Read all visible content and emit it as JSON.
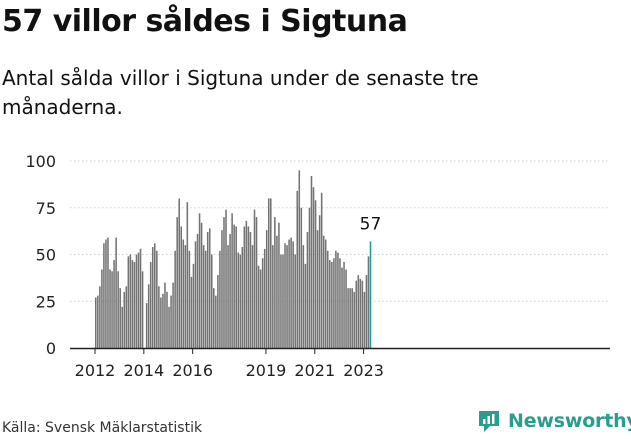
{
  "title": "57 villor såldes i Sigtuna",
  "subtitle": "Antal sålda villor i Sigtuna under de senaste tre månaderna.",
  "source": "Källa: Svensk Mäklarstatistik",
  "brand": "Newsworthy",
  "colors": {
    "bar": "#737373",
    "highlight": "#1a9e96",
    "brand": "#2a9d8f",
    "axis": "#222222"
  },
  "chart_data": {
    "type": "bar",
    "title": "57 villor såldes i Sigtuna",
    "xlabel": "",
    "ylabel": "",
    "ylim": [
      0,
      100
    ],
    "y_ticks": [
      0,
      25,
      50,
      75,
      100
    ],
    "x_ticks": [
      "2012",
      "2014",
      "2016",
      "2019",
      "2021",
      "2023"
    ],
    "highlight_label": "57",
    "start": "2012-01",
    "frequency": "monthly",
    "values": [
      27,
      28,
      33,
      42,
      56,
      58,
      59,
      42,
      41,
      47,
      59,
      41,
      32,
      22,
      30,
      33,
      49,
      50,
      47,
      46,
      50,
      51,
      53,
      41,
      0,
      24,
      34,
      46,
      54,
      56,
      52,
      33,
      27,
      29,
      35,
      30,
      22,
      28,
      35,
      52,
      70,
      80,
      65,
      58,
      55,
      78,
      52,
      38,
      45,
      57,
      61,
      72,
      67,
      55,
      52,
      62,
      64,
      50,
      32,
      28,
      39,
      52,
      63,
      70,
      74,
      55,
      61,
      72,
      66,
      65,
      51,
      50,
      54,
      65,
      68,
      65,
      62,
      55,
      74,
      70,
      44,
      42,
      48,
      53,
      63,
      80,
      80,
      55,
      70,
      60,
      67,
      50,
      50,
      56,
      55,
      58,
      59,
      57,
      50,
      84,
      95,
      75,
      55,
      45,
      62,
      75,
      92,
      86,
      79,
      63,
      71,
      83,
      60,
      58,
      52,
      47,
      46,
      48,
      52,
      51,
      48,
      43,
      46,
      42,
      32,
      32,
      32,
      30,
      36,
      39,
      37,
      36,
      30,
      39,
      49,
      57
    ]
  }
}
